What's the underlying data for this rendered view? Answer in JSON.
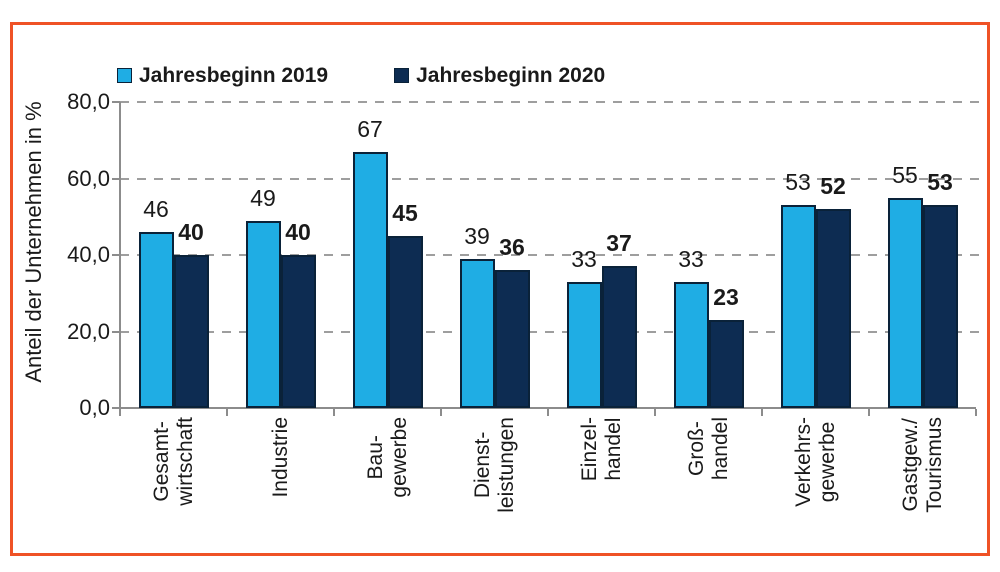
{
  "frame_color": "#ef5226",
  "text_color": "#1a1a1a",
  "grid_color": "#9e9e9e",
  "axis_color": "#8c8c8c",
  "chart_data": {
    "type": "bar",
    "title": "",
    "ylabel": "Anteil der Unternehmen in %",
    "xlabel": "",
    "ylim": [
      0,
      80
    ],
    "ytick_step": 20,
    "yticks": [
      {
        "value": 0,
        "label": "0,0"
      },
      {
        "value": 20,
        "label": "20,0"
      },
      {
        "value": 40,
        "label": "40,0"
      },
      {
        "value": 60,
        "label": "60,0"
      },
      {
        "value": 80,
        "label": "80,0"
      }
    ],
    "categories": [
      "Gesamt-\nwirtschaft",
      "Industrie",
      "Bau-\ngewerbe",
      "Dienst-\nleistungen",
      "Einzel-\nhandel",
      "Groß-\nhandel",
      "Verkehrs-\ngewerbe",
      "Gastgew./\nTourismus"
    ],
    "series": [
      {
        "name": "Jahresbeginn 2019",
        "color": "#1fade4",
        "values": [
          46,
          49,
          67,
          39,
          33,
          33,
          53,
          55
        ],
        "value_label_weight": "normal"
      },
      {
        "name": "Jahresbeginn 2020",
        "color": "#0d2c52",
        "values": [
          40,
          40,
          45,
          36,
          37,
          23,
          52,
          53
        ],
        "value_label_weight": "bold"
      }
    ],
    "bar_outline_color": "#0a2239",
    "legend_position": "top",
    "grid": "dashed-horizontal"
  }
}
